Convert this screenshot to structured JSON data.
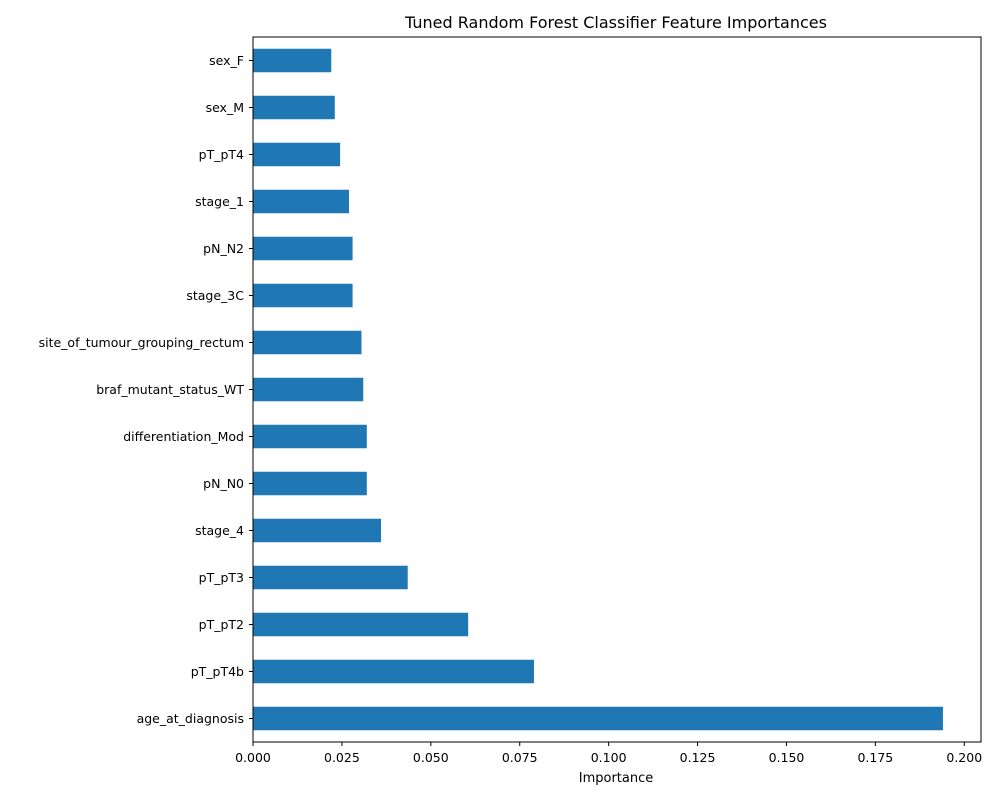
{
  "chart_data": {
    "type": "bar",
    "orientation": "horizontal",
    "title": "Tuned Random Forest Classifier Feature Importances",
    "xlabel": "Importance",
    "ylabel": "",
    "xlim": [
      0,
      0.2
    ],
    "xticks": [
      "0.000",
      "0.025",
      "0.050",
      "0.075",
      "0.100",
      "0.125",
      "0.150",
      "0.175",
      "0.200"
    ],
    "grid": false,
    "bar_color": "#1f77b4",
    "categories": [
      "age_at_diagnosis",
      "pT_pT4b",
      "pT_pT2",
      "pT_pT3",
      "stage_4",
      "pN_N0",
      "differentiation_Mod",
      "braf_mutant_status_WT",
      "site_of_tumour_grouping_rectum",
      "stage_3C",
      "pN_N2",
      "stage_1",
      "pT_pT4",
      "sex_M",
      "sex_F"
    ],
    "values": [
      0.194,
      0.079,
      0.0605,
      0.0435,
      0.036,
      0.032,
      0.032,
      0.031,
      0.0305,
      0.028,
      0.028,
      0.027,
      0.0245,
      0.023,
      0.022
    ]
  }
}
